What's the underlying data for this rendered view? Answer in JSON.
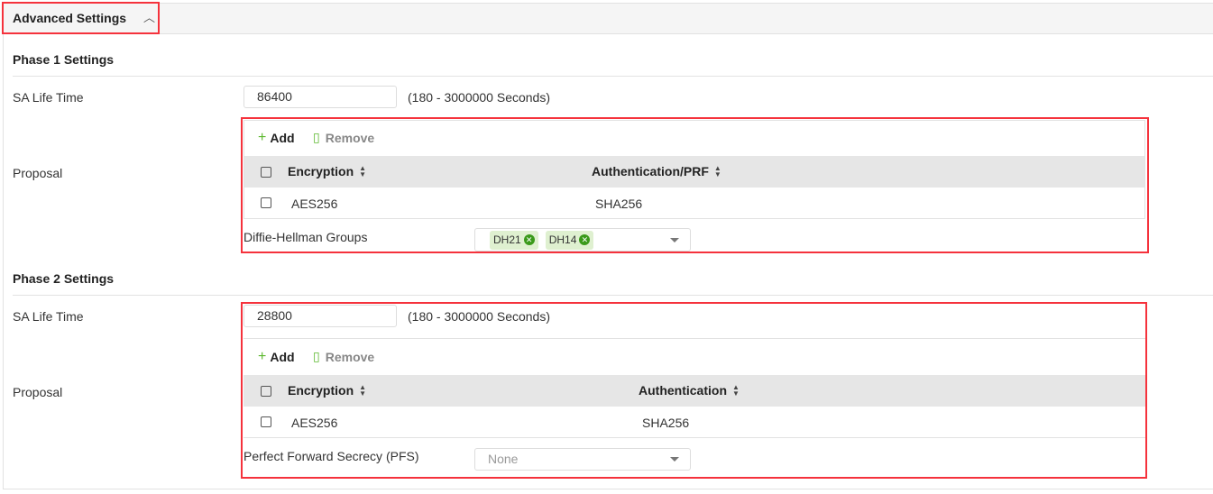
{
  "header": {
    "title": "Advanced Settings",
    "collapse_icon": "chevron-up-icon"
  },
  "phase1": {
    "title": "Phase 1 Settings",
    "sa_label": "SA Life Time",
    "sa_value": "86400",
    "sa_hint": "(180 - 3000000 Seconds)",
    "proposal_label": "Proposal",
    "add": "Add",
    "remove": "Remove",
    "col1": "Encryption",
    "col2": "Authentication/PRF",
    "rows": [
      {
        "enc": "AES256",
        "auth": "SHA256"
      }
    ],
    "dh_label": "Diffie-Hellman Groups",
    "dh_tags": [
      "DH21",
      "DH14"
    ]
  },
  "phase2": {
    "title": "Phase 2 Settings",
    "sa_label": "SA Life Time",
    "sa_value": "28800",
    "sa_hint": "(180 - 3000000 Seconds)",
    "proposal_label": "Proposal",
    "add": "Add",
    "remove": "Remove",
    "col1": "Encryption",
    "col2": "Authentication",
    "rows": [
      {
        "enc": "AES256",
        "auth": "SHA256"
      }
    ],
    "pfs_label": "Perfect Forward Secrecy (PFS)",
    "pfs_value": "None"
  },
  "colors": {
    "highlight": "#f5323c",
    "accent": "#5cb82e",
    "tag_bg": "#dff0d0"
  }
}
